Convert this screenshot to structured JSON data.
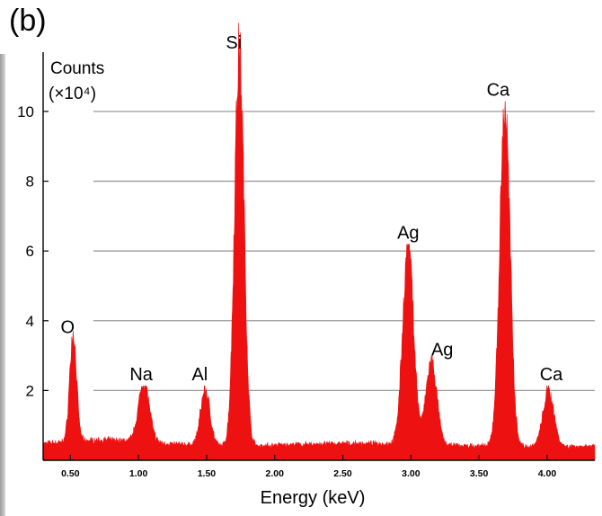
{
  "panel_label": "(b)",
  "chart_data": {
    "type": "area",
    "title": "",
    "ylabel_line1": "Counts",
    "ylabel_line2": "(×10⁴)",
    "xlabel": "Energy (keV)",
    "xlim": [
      0.3,
      4.35
    ],
    "ylim": [
      0,
      11.7
    ],
    "x_ticks": [
      {
        "value": 0.5,
        "label": "0.50"
      },
      {
        "value": 1.0,
        "label": "1.00"
      },
      {
        "value": 1.5,
        "label": "1.50"
      },
      {
        "value": 2.0,
        "label": "2.00"
      },
      {
        "value": 2.5,
        "label": "2.50"
      },
      {
        "value": 3.0,
        "label": "3.00"
      },
      {
        "value": 3.5,
        "label": "3.50"
      },
      {
        "value": 4.0,
        "label": "4.00"
      }
    ],
    "y_ticks": [
      {
        "value": 2,
        "label": "2"
      },
      {
        "value": 4,
        "label": "4"
      },
      {
        "value": 6,
        "label": "6"
      },
      {
        "value": 8,
        "label": "8"
      },
      {
        "value": 10,
        "label": "10"
      }
    ],
    "grid": "horizontal",
    "fill_color": "#ee1111",
    "background": 0.4,
    "peaks": [
      {
        "element": "O",
        "energy": 0.52,
        "height": 3.1,
        "width": 0.025
      },
      {
        "element": "Na",
        "energy": 1.04,
        "height": 1.7,
        "width": 0.04
      },
      {
        "element": "Al",
        "energy": 1.49,
        "height": 1.6,
        "width": 0.035
      },
      {
        "element": "Si",
        "energy": 1.74,
        "height": 11.3,
        "width": 0.035
      },
      {
        "element": "Ag",
        "energy": 2.98,
        "height": 5.7,
        "width": 0.04
      },
      {
        "element": "Ag",
        "energy": 3.15,
        "height": 2.4,
        "width": 0.04
      },
      {
        "element": "Ca",
        "energy": 3.69,
        "height": 9.7,
        "width": 0.038
      },
      {
        "element": "Ca",
        "energy": 4.01,
        "height": 1.6,
        "width": 0.04
      }
    ],
    "annotations": [
      {
        "text": "O",
        "x": 0.48,
        "y": 3.65,
        "gap": false
      },
      {
        "text": "Na",
        "x": 1.02,
        "y": 2.3,
        "gap": true
      },
      {
        "text": "Al",
        "x": 1.45,
        "y": 2.3,
        "gap": true
      },
      {
        "text": "Si",
        "x": 1.7,
        "y": 11.8,
        "gap": false
      },
      {
        "text": "Ag",
        "x": 2.98,
        "y": 6.35,
        "gap": true
      },
      {
        "text": "Ag",
        "x": 3.23,
        "y": 3.0,
        "gap": false
      },
      {
        "text": "Ca",
        "x": 3.64,
        "y": 10.45,
        "gap": true
      },
      {
        "text": "Ca",
        "x": 4.03,
        "y": 2.3,
        "gap": true
      }
    ]
  }
}
